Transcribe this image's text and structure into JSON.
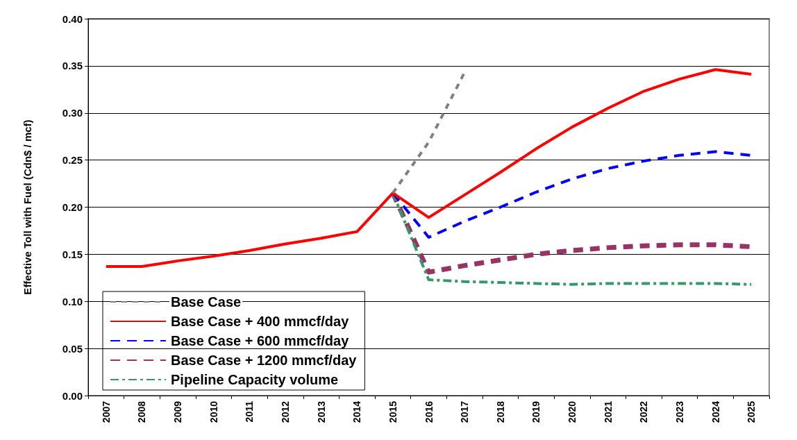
{
  "chart_data": {
    "type": "line",
    "ylabel": "Effective Toll with Fuel (Cdn$ / mcf)",
    "categories": [
      "2007",
      "2008",
      "2009",
      "2010",
      "2011",
      "2012",
      "2013",
      "2014",
      "2015",
      "2016",
      "2017",
      "2018",
      "2019",
      "2020",
      "2021",
      "2022",
      "2023",
      "2024",
      "2025"
    ],
    "series": [
      {
        "name": "Base Case",
        "color": "#808080",
        "line_style": "dotted",
        "values": [
          null,
          null,
          null,
          null,
          null,
          null,
          null,
          null,
          0.215,
          0.269,
          0.343,
          null,
          null,
          null,
          null,
          null,
          null,
          null,
          null
        ]
      },
      {
        "name": "Base Case + 400 mmcf/day",
        "color": "#ff0000",
        "line_style": "solid",
        "values": [
          0.137,
          0.137,
          0.143,
          0.148,
          0.154,
          0.161,
          0.167,
          0.174,
          0.215,
          0.189,
          0.213,
          0.237,
          0.262,
          0.285,
          0.305,
          0.323,
          0.336,
          0.346,
          0.341
        ]
      },
      {
        "name": "Base Case + 600 mmcf/day",
        "color": "#0000ff",
        "line_style": "dashed",
        "values": [
          null,
          null,
          null,
          null,
          null,
          null,
          null,
          null,
          0.215,
          0.168,
          0.185,
          0.2,
          0.216,
          0.23,
          0.241,
          0.249,
          0.255,
          0.259,
          0.255
        ]
      },
      {
        "name": "Base Case + 1200 mmcf/day",
        "color": "#993366",
        "line_style": "dashed",
        "values": [
          null,
          null,
          null,
          null,
          null,
          null,
          null,
          null,
          0.215,
          0.131,
          0.138,
          0.144,
          0.15,
          0.154,
          0.157,
          0.159,
          0.16,
          0.16,
          0.158
        ]
      },
      {
        "name": "Pipeline Capacity volume",
        "color": "#339966",
        "line_style": "dashed",
        "values": [
          null,
          null,
          null,
          null,
          null,
          null,
          null,
          null,
          0.215,
          0.123,
          0.121,
          0.12,
          0.119,
          0.118,
          0.119,
          0.119,
          0.119,
          0.119,
          0.118
        ]
      }
    ],
    "ylim": [
      0,
      0.4
    ],
    "yticks": [
      {
        "value": 0,
        "label": "0.00"
      },
      0.05,
      {
        "value": 0.1,
        "label": "0.10"
      },
      0.15,
      {
        "value": 0.2,
        "label": "0.20"
      },
      0.25,
      {
        "value": 0.3,
        "label": "0.30"
      },
      0.35,
      {
        "value": 0.4,
        "label": "0.40"
      }
    ],
    "grid": "y",
    "legend": "bottom left",
    "marker": "none"
  }
}
